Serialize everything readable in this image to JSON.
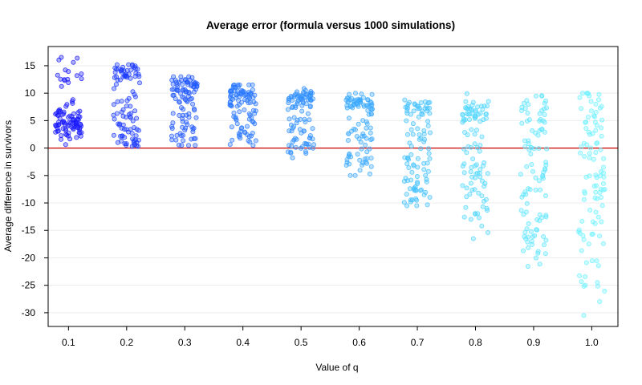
{
  "chart_data": {
    "type": "scatter",
    "title": "Average error (formula versus 1000 simulations)",
    "xlabel": "Value of q",
    "ylabel": "Average difference in survivors",
    "categories": [
      "0.1",
      "0.2",
      "0.3",
      "0.4",
      "0.5",
      "0.6",
      "0.7",
      "0.8",
      "0.9",
      "1.0"
    ],
    "x_values": [
      0.1,
      0.2,
      0.3,
      0.4,
      0.5,
      0.6,
      0.7,
      0.8,
      0.9,
      1.0
    ],
    "xlim": [
      0.065,
      1.045
    ],
    "ylim": [
      -32.5,
      18.5
    ],
    "yticks": [
      15,
      10,
      5,
      0,
      -5,
      -10,
      -15,
      -20,
      -25,
      -30
    ],
    "grid": true,
    "points_per_group": 100,
    "jitter_width": 0.045,
    "reference_line": {
      "y": 0,
      "color": "#cc0000"
    },
    "marker_colors": [
      "#1a1aff",
      "#1f3dff",
      "#235aff",
      "#2a78ff",
      "#3392ff",
      "#3caaff",
      "#46c2ff",
      "#55d8ff",
      "#60e6ff",
      "#6ef2ff"
    ],
    "groups": [
      {
        "q": 0.1,
        "clusters": [
          {
            "center": 4.5,
            "spread": 1.6,
            "weight": 0.7
          },
          {
            "center": 12.5,
            "spread": 0.8,
            "weight": 0.1
          },
          {
            "center": 7,
            "spread": 1.5,
            "weight": 0.12
          },
          {
            "center": 16.5,
            "spread": 1.0,
            "weight": 0.08
          }
        ],
        "min": 0.3,
        "max": 17.8
      },
      {
        "q": 0.2,
        "clusters": [
          {
            "center": 13.8,
            "spread": 0.8,
            "weight": 0.35
          },
          {
            "center": 6.5,
            "spread": 2.5,
            "weight": 0.45
          },
          {
            "center": 2,
            "spread": 1.3,
            "weight": 0.2
          }
        ],
        "min": 0.3,
        "max": 15.2
      },
      {
        "q": 0.3,
        "clusters": [
          {
            "center": 11,
            "spread": 1.1,
            "weight": 0.55
          },
          {
            "center": 6,
            "spread": 2.0,
            "weight": 0.3
          },
          {
            "center": 2,
            "spread": 1.1,
            "weight": 0.15
          }
        ],
        "min": 0.5,
        "max": 13.0
      },
      {
        "q": 0.4,
        "clusters": [
          {
            "center": 9.8,
            "spread": 1.2,
            "weight": 0.55
          },
          {
            "center": 5.5,
            "spread": 2.0,
            "weight": 0.35
          },
          {
            "center": 1.5,
            "spread": 0.8,
            "weight": 0.1
          }
        ],
        "min": 0.5,
        "max": 11.5
      },
      {
        "q": 0.5,
        "clusters": [
          {
            "center": 9.2,
            "spread": 0.8,
            "weight": 0.5
          },
          {
            "center": 4.5,
            "spread": 2.2,
            "weight": 0.3
          },
          {
            "center": 0,
            "spread": 1.2,
            "weight": 0.2
          }
        ],
        "min": -2.0,
        "max": 11.0
      },
      {
        "q": 0.6,
        "clusters": [
          {
            "center": 8.2,
            "spread": 0.8,
            "weight": 0.45
          },
          {
            "center": 3,
            "spread": 2.5,
            "weight": 0.3
          },
          {
            "center": -2.5,
            "spread": 1.6,
            "weight": 0.25
          }
        ],
        "min": -5.0,
        "max": 11.0
      },
      {
        "q": 0.7,
        "clusters": [
          {
            "center": 7.5,
            "spread": 1.0,
            "weight": 0.35
          },
          {
            "center": 1,
            "spread": 3.0,
            "weight": 0.4
          },
          {
            "center": -7,
            "spread": 2.2,
            "weight": 0.25
          }
        ],
        "min": -10.5,
        "max": 11.2
      },
      {
        "q": 0.8,
        "clusters": [
          {
            "center": 6.5,
            "spread": 1.6,
            "weight": 0.3
          },
          {
            "center": -2,
            "spread": 4.0,
            "weight": 0.45
          },
          {
            "center": -11,
            "spread": 3.0,
            "weight": 0.25
          }
        ],
        "min": -16.5,
        "max": 10.5
      },
      {
        "q": 0.9,
        "clusters": [
          {
            "center": 6,
            "spread": 2.5,
            "weight": 0.3
          },
          {
            "center": -4,
            "spread": 5.0,
            "weight": 0.45
          },
          {
            "center": -16,
            "spread": 3.5,
            "weight": 0.25
          }
        ],
        "min": -23.5,
        "max": 10.5
      },
      {
        "q": 1.0,
        "clusters": [
          {
            "center": 6,
            "spread": 3.0,
            "weight": 0.25
          },
          {
            "center": -6,
            "spread": 6.0,
            "weight": 0.45
          },
          {
            "center": -20,
            "spread": 5.0,
            "weight": 0.3
          }
        ],
        "min": -30.5,
        "max": 10.0
      }
    ]
  }
}
